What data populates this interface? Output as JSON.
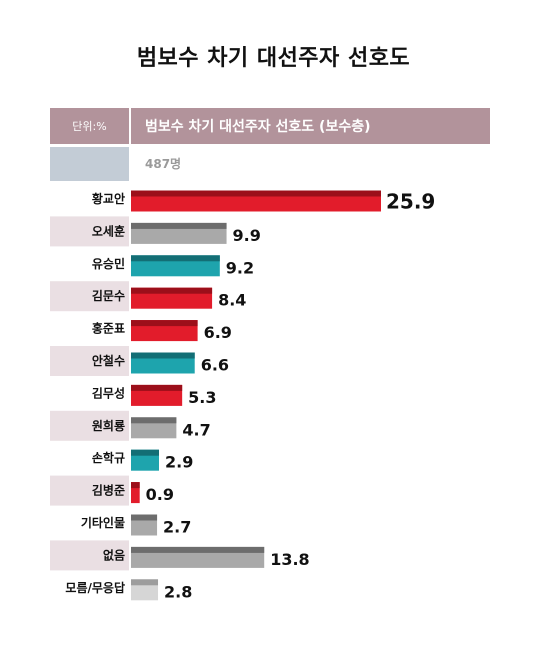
{
  "colors": {
    "red": "#e21c2b",
    "red_top": "#9c0f1a",
    "gray": "#a9a9a9",
    "gray_top": "#6d6d6d",
    "teal": "#1ea4ad",
    "teal_top": "#136e75",
    "light_gray": "#d6d6d6",
    "light_gray_top": "#9d9d9d",
    "header": "#b2939b",
    "label_pink": "#eadfe3",
    "sample_box": "#c3ccd6"
  },
  "header": {
    "unit": "단위:%",
    "label": "범보수 차기 대선주자 선호도 (보수층)",
    "sample": "487명"
  },
  "chart_data": {
    "type": "bar",
    "orientation": "horizontal",
    "title": "범보수 차기 대선주자 선호도",
    "categories": [
      "황교안",
      "오세훈",
      "유승민",
      "김문수",
      "홍준표",
      "안철수",
      "김무성",
      "원희룡",
      "손학규",
      "김병준",
      "기타인물",
      "없음",
      "모름/무응답"
    ],
    "values": [
      25.9,
      9.9,
      9.2,
      8.4,
      6.9,
      6.6,
      5.3,
      4.7,
      2.9,
      0.9,
      2.7,
      13.8,
      2.8
    ],
    "bar_colors": [
      "red",
      "gray",
      "teal",
      "red",
      "red",
      "teal",
      "red",
      "gray",
      "teal",
      "red",
      "gray",
      "gray",
      "light_gray"
    ],
    "label_bg": [
      "white",
      "pink",
      "white",
      "pink",
      "white",
      "pink",
      "white",
      "pink",
      "white",
      "pink",
      "white",
      "pink",
      "white"
    ],
    "xlim": [
      0,
      25.9
    ],
    "xlabel": "",
    "ylabel": "",
    "grid": false,
    "legend": "none"
  }
}
